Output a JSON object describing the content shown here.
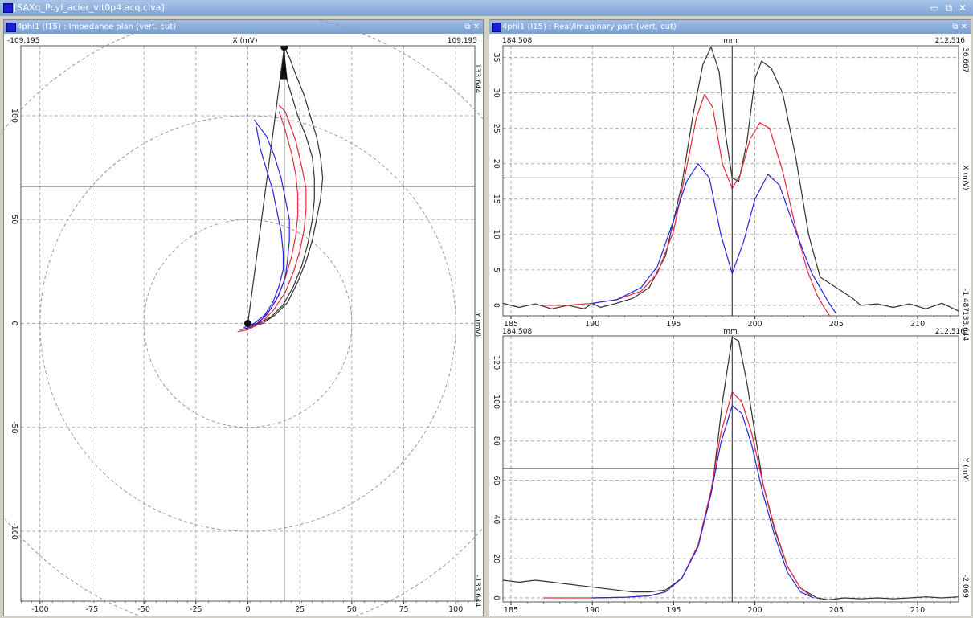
{
  "window": {
    "title": "[SAXq_Pcyl_acier_vit0p4.acq.civa]",
    "controls": "▭ ⧉ ✕"
  },
  "left_pane": {
    "title": "4phi1 (I15) : Impedance plan (vert. cut)",
    "controls": "⧉ ✕",
    "x_axis_title": "X (mV)",
    "y_axis_title": "Y (mV)",
    "x_min_label": "-109.195",
    "x_max_label": "109.195",
    "y_max_label": "133.644",
    "y_min_label": "-133.644",
    "x_ticks": [
      "-100",
      "-75",
      "-50",
      "-25",
      "0",
      "25",
      "50",
      "75",
      "100"
    ],
    "y_ticks": [
      "100",
      "50",
      "0",
      "-50",
      "-100"
    ]
  },
  "right_pane": {
    "title": "4phi1 (I15) : Real/Imaginary part (vert. cut)",
    "controls": "⧉ ✕"
  },
  "top_chart": {
    "x_unit": "mm",
    "y_axis_title": "X (mV)",
    "x_min_label": "184.508",
    "x_max_label": "212.516",
    "y_max_label": "36.667",
    "y_min_label": "-1.487",
    "x_ticks": [
      "185",
      "190",
      "195",
      "200",
      "205",
      "210"
    ],
    "y_ticks": [
      "35",
      "30",
      "25",
      "20",
      "15",
      "10",
      "5",
      "0"
    ]
  },
  "bottom_chart": {
    "x_unit": "mm",
    "y_axis_title": "Y (mV)",
    "x_min_label": "184.508",
    "x_max_label": "212.516",
    "y_max_label": "133.644",
    "y_min_label": "-2.069",
    "x_ticks": [
      "185",
      "190",
      "195",
      "200",
      "205",
      "210"
    ],
    "y_ticks": [
      "120",
      "100",
      "80",
      "60",
      "40",
      "20",
      "0"
    ]
  },
  "colors": {
    "black_series": "#333333",
    "red_series": "#e8283c",
    "blue_series": "#2626e0"
  },
  "chart_data": [
    {
      "type": "line",
      "xlabel": "mm",
      "ylabel": "X (mV)",
      "xlim": [
        184.508,
        212.516
      ],
      "ylim": [
        -1.487,
        36.667
      ],
      "cursor": {
        "x": 198.6,
        "y": 18
      },
      "series": [
        {
          "color": "black",
          "points": [
            [
              184.5,
              0.3
            ],
            [
              185.5,
              -0.3
            ],
            [
              186.5,
              0.2
            ],
            [
              187.5,
              -0.5
            ],
            [
              188.5,
              0
            ],
            [
              189.5,
              -0.5
            ],
            [
              190,
              0.3
            ],
            [
              190.5,
              -0.3
            ],
            [
              191.5,
              0.3
            ],
            [
              192.5,
              1
            ],
            [
              193.5,
              2.5
            ],
            [
              194.5,
              7
            ],
            [
              195.5,
              17
            ],
            [
              196.2,
              27
            ],
            [
              196.8,
              34
            ],
            [
              197.3,
              36.5
            ],
            [
              197.8,
              33
            ],
            [
              198.2,
              24
            ],
            [
              198.6,
              18
            ],
            [
              199,
              17.5
            ],
            [
              199.5,
              23
            ],
            [
              200,
              32
            ],
            [
              200.4,
              34.5
            ],
            [
              201,
              33.5
            ],
            [
              201.7,
              30
            ],
            [
              202.5,
              21
            ],
            [
              203.3,
              10
            ],
            [
              204,
              4
            ],
            [
              205,
              2.5
            ],
            [
              206,
              1
            ],
            [
              206.5,
              0
            ],
            [
              207.5,
              0.2
            ],
            [
              208.5,
              -0.3
            ],
            [
              209.5,
              0.2
            ],
            [
              210.5,
              -0.5
            ],
            [
              211.5,
              0.3
            ],
            [
              212.5,
              -0.8
            ]
          ]
        },
        {
          "color": "red",
          "points": [
            [
              187,
              0
            ],
            [
              188.5,
              0
            ],
            [
              190,
              0.3
            ],
            [
              191.5,
              0.8
            ],
            [
              193,
              2
            ],
            [
              194,
              4.5
            ],
            [
              195,
              10.5
            ],
            [
              195.8,
              19.5
            ],
            [
              196.4,
              26.5
            ],
            [
              196.9,
              29.8
            ],
            [
              197.4,
              28
            ],
            [
              198,
              20
            ],
            [
              198.6,
              16.5
            ],
            [
              199.1,
              18.5
            ],
            [
              199.7,
              23.5
            ],
            [
              200.3,
              25.8
            ],
            [
              200.9,
              25
            ],
            [
              201.7,
              19
            ],
            [
              202.5,
              11
            ],
            [
              203.2,
              5
            ],
            [
              203.8,
              1.5
            ],
            [
              204.3,
              -0.5
            ],
            [
              204.6,
              -1.5
            ]
          ]
        },
        {
          "color": "blue",
          "points": [
            [
              190,
              0.3
            ],
            [
              191.5,
              0.8
            ],
            [
              193,
              2.5
            ],
            [
              194,
              5.5
            ],
            [
              195,
              12
            ],
            [
              195.8,
              17.5
            ],
            [
              196.5,
              20
            ],
            [
              197.2,
              18
            ],
            [
              197.9,
              10
            ],
            [
              198.6,
              4.5
            ],
            [
              199.3,
              9
            ],
            [
              200,
              15
            ],
            [
              200.8,
              18.5
            ],
            [
              201.5,
              17
            ],
            [
              202.5,
              10.5
            ],
            [
              203.5,
              4.5
            ],
            [
              204.5,
              0.5
            ],
            [
              205,
              -1.2
            ]
          ]
        }
      ]
    },
    {
      "type": "line",
      "xlabel": "mm",
      "ylabel": "Y (mV)",
      "xlim": [
        184.508,
        212.516
      ],
      "ylim": [
        -2.069,
        133.644
      ],
      "cursor": {
        "x": 198.6,
        "y": 66
      },
      "series": [
        {
          "color": "black",
          "points": [
            [
              184.5,
              9
            ],
            [
              185.5,
              8
            ],
            [
              186.5,
              9
            ],
            [
              187.5,
              8
            ],
            [
              188.5,
              7
            ],
            [
              189.5,
              6
            ],
            [
              190.5,
              5
            ],
            [
              191.5,
              4
            ],
            [
              192.5,
              3
            ],
            [
              193.5,
              3
            ],
            [
              194.5,
              4
            ],
            [
              195.5,
              10
            ],
            [
              196.5,
              26
            ],
            [
              197.4,
              58
            ],
            [
              198,
              100
            ],
            [
              198.6,
              133
            ],
            [
              199,
              131
            ],
            [
              199.5,
              110
            ],
            [
              200,
              84
            ],
            [
              200.5,
              58
            ],
            [
              201.2,
              35
            ],
            [
              202,
              16
            ],
            [
              202.8,
              5
            ],
            [
              203.8,
              0
            ],
            [
              204.5,
              -1
            ],
            [
              205.5,
              0
            ],
            [
              206.5,
              -0.5
            ],
            [
              207.5,
              0
            ],
            [
              208.5,
              -0.5
            ],
            [
              209.5,
              0
            ],
            [
              210.5,
              0.5
            ],
            [
              211.5,
              0
            ],
            [
              212.5,
              0.5
            ]
          ]
        },
        {
          "color": "red",
          "points": [
            [
              187,
              0
            ],
            [
              190,
              0
            ],
            [
              192,
              0.3
            ],
            [
              193.5,
              1
            ],
            [
              194.5,
              3
            ],
            [
              195.5,
              10
            ],
            [
              196.5,
              27
            ],
            [
              197.3,
              55
            ],
            [
              197.9,
              84
            ],
            [
              198.6,
              105
            ],
            [
              199.2,
              100
            ],
            [
              199.8,
              84
            ],
            [
              200.5,
              58
            ],
            [
              201.2,
              36
            ],
            [
              202,
              16
            ],
            [
              202.8,
              5
            ],
            [
              203.5,
              0.5
            ]
          ]
        },
        {
          "color": "blue",
          "points": [
            [
              190,
              0
            ],
            [
              192,
              0.3
            ],
            [
              193.5,
              1
            ],
            [
              194.5,
              3
            ],
            [
              195.5,
              10
            ],
            [
              196.5,
              26
            ],
            [
              197.3,
              53
            ],
            [
              197.9,
              79
            ],
            [
              198.6,
              98
            ],
            [
              199.2,
              94
            ],
            [
              199.8,
              78
            ],
            [
              200.5,
              53
            ],
            [
              201.2,
              32
            ],
            [
              202,
              13
            ],
            [
              202.8,
              3
            ],
            [
              203.6,
              0
            ]
          ]
        }
      ]
    },
    {
      "type": "scatter",
      "xlabel": "X (mV)",
      "ylabel": "Y (mV)",
      "xlim": [
        -109.195,
        109.195
      ],
      "ylim": [
        -133.644,
        133.644
      ],
      "circles_radius": [
        50,
        100,
        150
      ],
      "cursor": {
        "x": 17.5,
        "y": 66
      },
      "series": [
        {
          "color": "black",
          "points": [
            [
              0,
              -2
            ],
            [
              3,
              -1
            ],
            [
              7,
              0
            ],
            [
              13,
              4
            ],
            [
              19,
              10
            ],
            [
              24,
              20
            ],
            [
              28,
              30
            ],
            [
              31,
              40
            ],
            [
              33,
              50
            ],
            [
              35,
              60
            ],
            [
              36,
              70
            ],
            [
              35,
              80
            ],
            [
              33,
              90
            ],
            [
              30,
              100
            ],
            [
              27,
              110
            ],
            [
              23,
              120
            ],
            [
              20,
              128
            ],
            [
              17.5,
              133
            ]
          ]
        },
        {
          "color": "black",
          "points": [
            [
              0,
              -1
            ],
            [
              5,
              0
            ],
            [
              11,
              3
            ],
            [
              17,
              9
            ],
            [
              22,
              18
            ],
            [
              26,
              28
            ],
            [
              29,
              39
            ],
            [
              31,
              50
            ],
            [
              32,
              60
            ],
            [
              32,
              70
            ],
            [
              31,
              80
            ],
            [
              28,
              90
            ],
            [
              24,
              100
            ],
            [
              21,
              110
            ],
            [
              18,
              120
            ],
            [
              17.5,
              133
            ]
          ]
        },
        {
          "color": "black",
          "points": [
            [
              0,
              0
            ],
            [
              17.5,
              133
            ]
          ]
        },
        {
          "color": "red",
          "points": [
            [
              -5,
              -4
            ],
            [
              0,
              -3
            ],
            [
              6,
              0
            ],
            [
              12,
              6
            ],
            [
              18,
              15
            ],
            [
              22,
              25
            ],
            [
              25,
              35
            ],
            [
              27,
              45
            ],
            [
              28,
              55
            ],
            [
              28,
              65
            ],
            [
              26,
              75
            ],
            [
              23,
              88
            ],
            [
              18,
              102
            ],
            [
              15,
              105
            ]
          ]
        },
        {
          "color": "red",
          "points": [
            [
              -3,
              -3
            ],
            [
              3,
              -1
            ],
            [
              9,
              4
            ],
            [
              14,
              12
            ],
            [
              18,
              22
            ],
            [
              21,
              32
            ],
            [
              23,
              42
            ],
            [
              24,
              52
            ],
            [
              24,
              62
            ],
            [
              23,
              72
            ],
            [
              21,
              82
            ],
            [
              18,
              93
            ],
            [
              15,
              102
            ]
          ]
        },
        {
          "color": "blue",
          "points": [
            [
              -4,
              -3
            ],
            [
              1,
              -2
            ],
            [
              6,
              1
            ],
            [
              11,
              7
            ],
            [
              15,
              14
            ],
            [
              18,
              22
            ],
            [
              19,
              30
            ],
            [
              20,
              40
            ],
            [
              20,
              50
            ],
            [
              18,
              60
            ],
            [
              16,
              70
            ],
            [
              13,
              80
            ],
            [
              9,
              90
            ],
            [
              3,
              98
            ]
          ]
        },
        {
          "color": "blue",
          "points": [
            [
              -2,
              -2
            ],
            [
              3,
              0
            ],
            [
              8,
              4
            ],
            [
              12,
              10
            ],
            [
              15,
              18
            ],
            [
              17,
              26
            ],
            [
              17,
              34
            ],
            [
              16,
              44
            ],
            [
              14,
              54
            ],
            [
              12,
              64
            ],
            [
              9,
              74
            ],
            [
              6,
              84
            ],
            [
              4,
              95
            ]
          ]
        }
      ]
    }
  ]
}
